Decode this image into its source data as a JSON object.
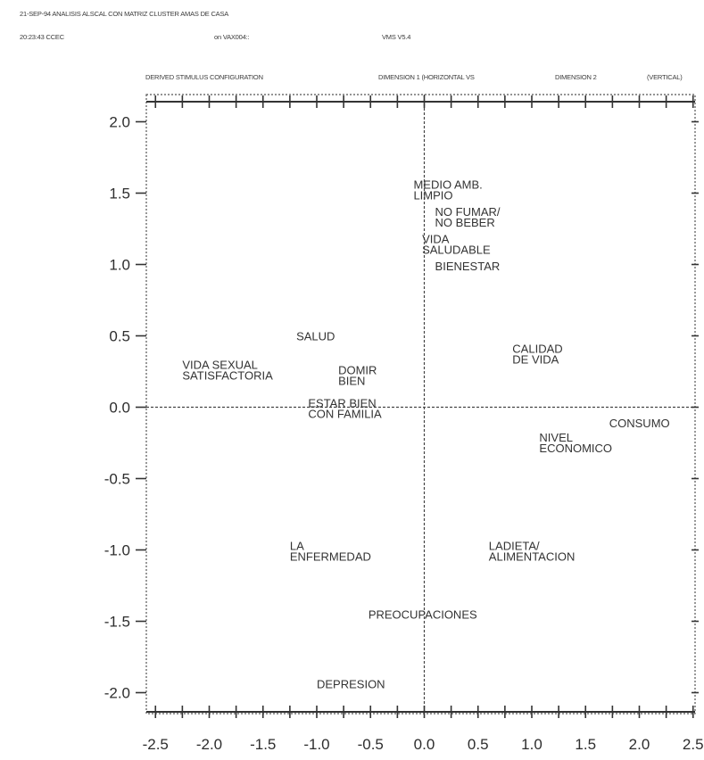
{
  "header": {
    "line1": "21-SEP-94 ANALISIS ALSCAL CON MATRIZ CLUSTER AMAS DE CASA",
    "line2_left": "20:23:43 CCEC",
    "line2_mid": "on VAX004::",
    "line2_right": "VMS V5.4",
    "config_title": "DERIVED STIMULUS CONFIGURATION",
    "dim1": "DIMENSION  1  (HORIZONTAL VS",
    "dim2": "DIMENSION  2",
    "vertical": "(VERTICAL)"
  },
  "chart_data": {
    "type": "scatter",
    "title": "DERIVED STIMULUS CONFIGURATION",
    "xlim": [
      -2.5,
      2.5
    ],
    "ylim": [
      -2.0,
      2.0
    ],
    "x_ticks": [
      "-2.5",
      "-2.0",
      "-1.5",
      "-1.0",
      "-0.5",
      "0.0",
      "0.5",
      "1.0",
      "1.5",
      "2.0",
      "2.5"
    ],
    "x_tick_values": [
      -2.5,
      -2.0,
      -1.5,
      -1.0,
      -0.5,
      0.0,
      0.5,
      1.0,
      1.5,
      2.0,
      2.5
    ],
    "y_ticks": [
      "2.0",
      "1.5",
      "1.0",
      "0.5",
      "0.0",
      "-0.5",
      "-1.0",
      "-1.5",
      "-2.0"
    ],
    "y_tick_values": [
      2.0,
      1.5,
      1.0,
      0.5,
      0.0,
      -0.5,
      -1.0,
      -1.5,
      -2.0
    ],
    "grid": false,
    "points": [
      {
        "lines": [
          "MEDIO AMB.",
          "LIMPIO"
        ],
        "x": -0.1,
        "y": 1.53
      },
      {
        "lines": [
          "NO FUMAR/",
          "NO BEBER"
        ],
        "x": 0.1,
        "y": 1.34
      },
      {
        "lines": [
          "VIDA",
          "SALUDABLE"
        ],
        "x": -0.02,
        "y": 1.15
      },
      {
        "lines": [
          "BIENESTAR"
        ],
        "x": 0.1,
        "y": 0.96
      },
      {
        "lines": [
          "SALUD"
        ],
        "x": -1.19,
        "y": 0.47
      },
      {
        "lines": [
          "CALIDAD",
          "DE VIDA"
        ],
        "x": 0.82,
        "y": 0.38
      },
      {
        "lines": [
          "VIDA SEXUAL",
          "SATISFACTORIA"
        ],
        "x": -2.25,
        "y": 0.27
      },
      {
        "lines": [
          "DOMIR",
          "BIEN"
        ],
        "x": -0.8,
        "y": 0.23
      },
      {
        "lines": [
          "ESTAR BIEN",
          "CON FAMILIA"
        ],
        "x": -1.08,
        "y": 0.0
      },
      {
        "lines": [
          "CONSUMO"
        ],
        "x": 1.72,
        "y": -0.14
      },
      {
        "lines": [
          "NIVEL",
          "ECONOMICO"
        ],
        "x": 1.07,
        "y": -0.24
      },
      {
        "lines": [
          "LA",
          "ENFERMEDAD"
        ],
        "x": -1.25,
        "y": -1.0
      },
      {
        "lines": [
          "LADIETA/",
          "ALIMENTACION"
        ],
        "x": 0.6,
        "y": -1.0
      },
      {
        "lines": [
          "PREOCUPACIONES"
        ],
        "x": -0.52,
        "y": -1.48
      },
      {
        "lines": [
          "DEPRESION"
        ],
        "x": -1.0,
        "y": -1.97
      }
    ]
  }
}
